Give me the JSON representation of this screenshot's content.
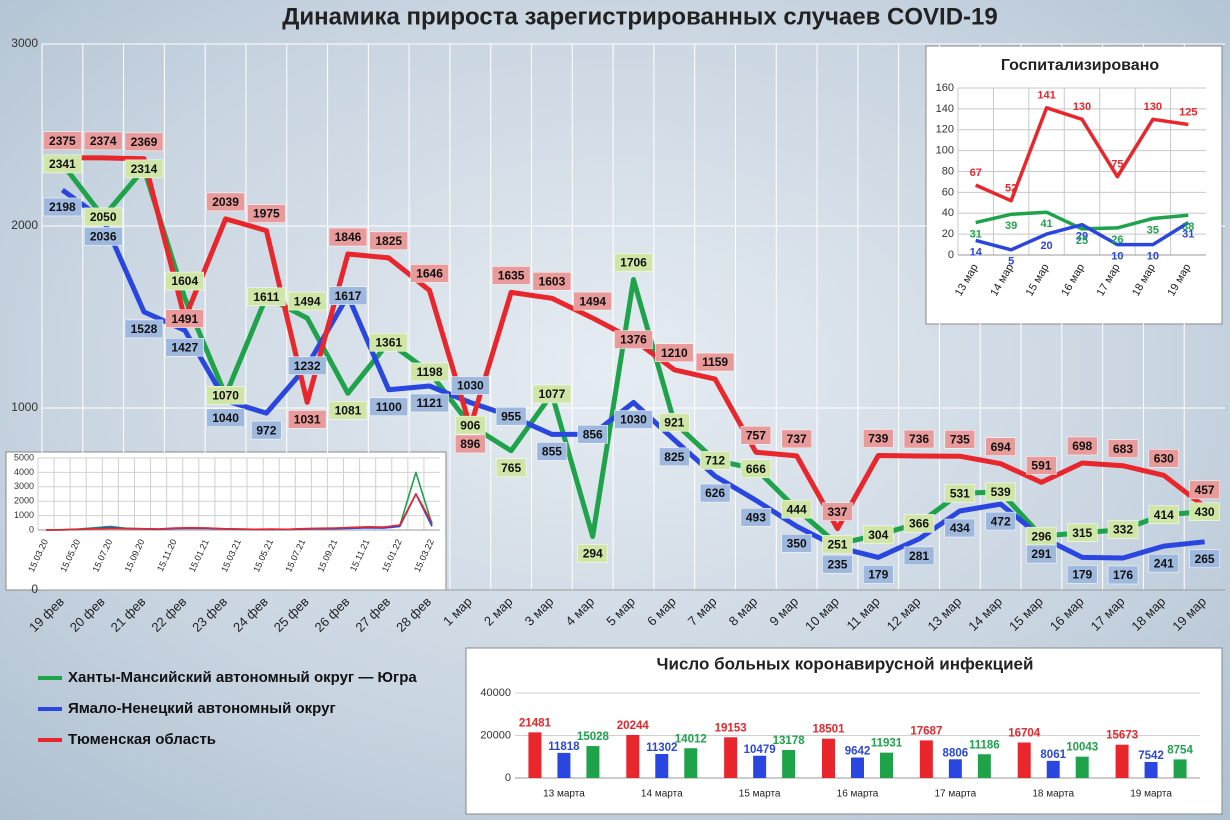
{
  "chart_data": [
    {
      "type": "line",
      "title": "Динамика прироста зарегистрированных случаев COVID-19",
      "categories": [
        "19 фев",
        "20 фев",
        "21 фев",
        "22 фев",
        "23 фев",
        "24 фев",
        "25 фев",
        "26 фев",
        "27 фев",
        "28 фев",
        "1 мар",
        "2 мар",
        "3 мар",
        "4 мар",
        "5 мар",
        "6 мар",
        "7 мар",
        "8 мар",
        "9 мар",
        "10 мар",
        "11 мар",
        "12 мар",
        "13 мар",
        "14 мар",
        "15 мар",
        "16 мар",
        "17 мар",
        "18 мар",
        "19 мар"
      ],
      "series": [
        {
          "name": "Ханты-Мансийский автономный округ — Югра",
          "color": "#1ea34a",
          "label_color": "#cfe6a6",
          "values": [
            2341,
            2050,
            2314,
            1604,
            1070,
            1611,
            1494,
            1081,
            1361,
            1198,
            906,
            765,
            1077,
            294,
            1706,
            921,
            712,
            666,
            444,
            251,
            304,
            366,
            531,
            539,
            296,
            315,
            332,
            414,
            430
          ]
        },
        {
          "name": "Ямало-Ненецкий автономный округ",
          "color": "#2a46e0",
          "label_color": "#9fb8de",
          "values": [
            2198,
            2036,
            1528,
            1427,
            1040,
            972,
            1232,
            1617,
            1100,
            1121,
            1030,
            955,
            855,
            856,
            1030,
            825,
            626,
            493,
            350,
            235,
            179,
            281,
            434,
            472,
            291,
            179,
            176,
            241,
            265
          ]
        },
        {
          "name": "Тюменская область",
          "color": "#e8262b",
          "label_color": "#e99a9a",
          "values": [
            2375,
            2374,
            2369,
            1491,
            2039,
            1975,
            1031,
            1846,
            1825,
            1646,
            896,
            1635,
            1603,
            1494,
            1376,
            1210,
            1159,
            757,
            737,
            337,
            739,
            736,
            735,
            694,
            591,
            698,
            683,
            630,
            457
          ]
        }
      ],
      "ylim": [
        0,
        3000
      ],
      "yticks": [
        0,
        1000,
        2000,
        3000
      ],
      "grid": true,
      "legend": "bottom-left",
      "data_labels": true
    },
    {
      "type": "line",
      "title": "Госпитализировано",
      "categories": [
        "13 мар",
        "14 мар",
        "15 мар",
        "16 мар",
        "17 мар",
        "18 мар",
        "19 мар"
      ],
      "series": [
        {
          "color": "#e8262b",
          "values": [
            67,
            52,
            141,
            130,
            75,
            130,
            125
          ]
        },
        {
          "color": "#1ea34a",
          "values": [
            31,
            39,
            41,
            25,
            26,
            35,
            38
          ]
        },
        {
          "color": "#2a46e0",
          "values": [
            14,
            5,
            20,
            29,
            10,
            10,
            31
          ]
        }
      ],
      "ylim": [
        0,
        160
      ],
      "yticks": [
        0,
        20,
        40,
        60,
        80,
        100,
        120,
        140,
        160
      ],
      "grid": true,
      "data_labels": true
    },
    {
      "type": "bar",
      "title": "Число больных коронавирусной инфекцией",
      "categories": [
        "13 марта",
        "14 марта",
        "15 марта",
        "16 марта",
        "17 марта",
        "18 марта",
        "19 марта"
      ],
      "series": [
        {
          "color": "#e8262b",
          "values": [
            21481,
            20244,
            19153,
            18501,
            17687,
            16704,
            15673
          ]
        },
        {
          "color": "#2a46e0",
          "values": [
            11818,
            11302,
            10479,
            9642,
            8806,
            8061,
            7542
          ]
        },
        {
          "color": "#1ea34a",
          "values": [
            15028,
            14012,
            13178,
            11931,
            11186,
            10043,
            8754
          ]
        }
      ],
      "ylim": [
        0,
        40000
      ],
      "yticks": [
        0,
        20000,
        40000
      ],
      "grid": true,
      "data_labels": true
    },
    {
      "type": "line",
      "categories": [
        "15.03.20",
        null,
        "15.05.20",
        null,
        "15.07.20",
        null,
        "15.09.20",
        null,
        "15.11.20",
        null,
        "15.01.21",
        null,
        "15.03.21",
        null,
        "15.05.21",
        null,
        "15.07.21",
        null,
        "15.09.21",
        null,
        "15.11.21",
        null,
        "15.01.22",
        null,
        "15.03.22"
      ],
      "series": [
        {
          "color": "#1ea34a",
          "values": [
            0,
            20,
            60,
            150,
            250,
            120,
            80,
            60,
            120,
            150,
            130,
            80,
            60,
            40,
            50,
            40,
            80,
            100,
            120,
            160,
            200,
            180,
            300,
            4000,
            400
          ]
        },
        {
          "color": "#2a46e0",
          "values": [
            0,
            10,
            40,
            100,
            180,
            90,
            70,
            50,
            100,
            120,
            110,
            70,
            50,
            30,
            40,
            30,
            60,
            80,
            90,
            120,
            150,
            130,
            250,
            2500,
            250
          ]
        },
        {
          "color": "#e8262b",
          "values": [
            0,
            15,
            50,
            80,
            100,
            100,
            90,
            70,
            130,
            150,
            140,
            90,
            70,
            50,
            60,
            50,
            90,
            120,
            140,
            180,
            220,
            200,
            350,
            2500,
            500
          ]
        }
      ],
      "ylim": [
        0,
        5000
      ],
      "yticks": [
        0,
        1000,
        2000,
        3000,
        4000,
        5000
      ],
      "grid": true,
      "data_labels": false
    }
  ]
}
